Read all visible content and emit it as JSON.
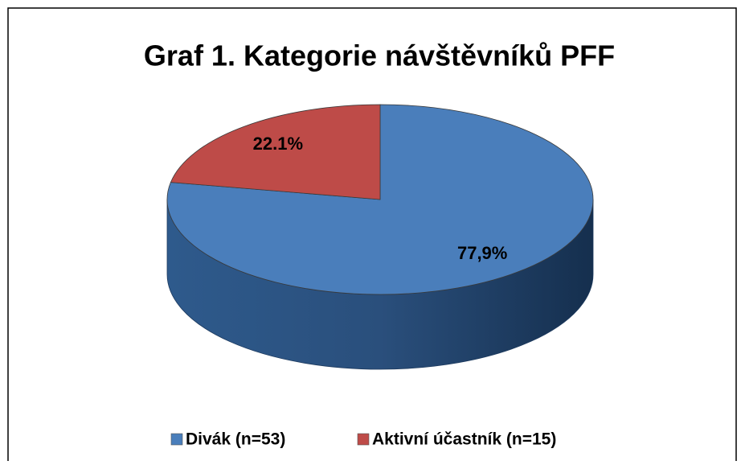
{
  "chart_data": {
    "type": "pie3d",
    "title": "Graf 1. Kategorie návštěvníků PFF",
    "categories": [
      "Divák (n=53)",
      "Aktivní účastník (n=15)"
    ],
    "values": [
      77.9,
      22.1
    ],
    "value_labels": [
      "77,9%",
      "22.1%"
    ],
    "colors": [
      "#4a7ebb",
      "#be4b48"
    ],
    "legend": "bottom"
  }
}
